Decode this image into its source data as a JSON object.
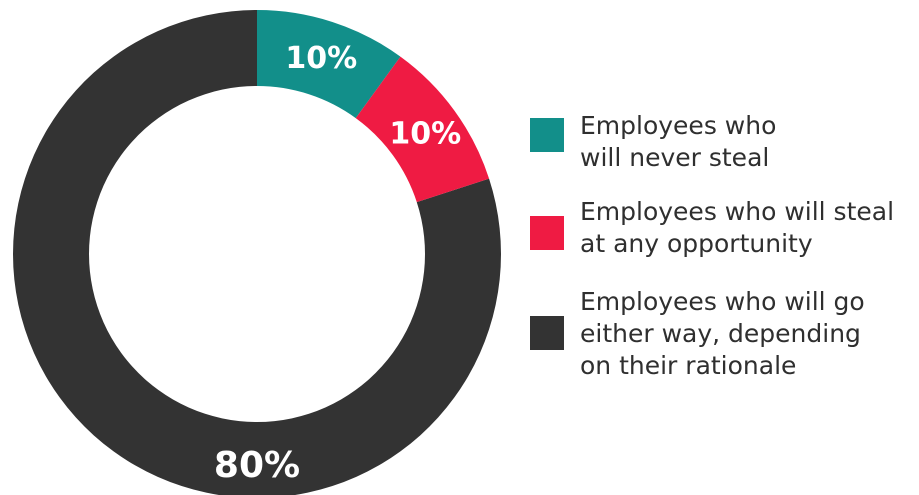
{
  "chart_data": {
    "type": "pie",
    "variant": "donut",
    "title": "",
    "categories": [
      "Employees who will go either way, depending on their rationale",
      "Employees who will never steal",
      "Employees who will steal at any opportunity"
    ],
    "values": [
      80,
      10,
      10
    ],
    "data_labels": [
      "80%",
      "10%",
      "10%"
    ],
    "colors": [
      "#333333",
      "#128f8a",
      "#ef1b43"
    ],
    "legend_placement": "right"
  },
  "legend": [
    {
      "label": "Employees who\nwill never steal",
      "color": "#128f8a"
    },
    {
      "label": "Employees who will steal\nat any opportunity",
      "color": "#ef1b43"
    },
    {
      "label": "Employees who will go\neither way, depending\non their rationale",
      "color": "#333333"
    }
  ]
}
